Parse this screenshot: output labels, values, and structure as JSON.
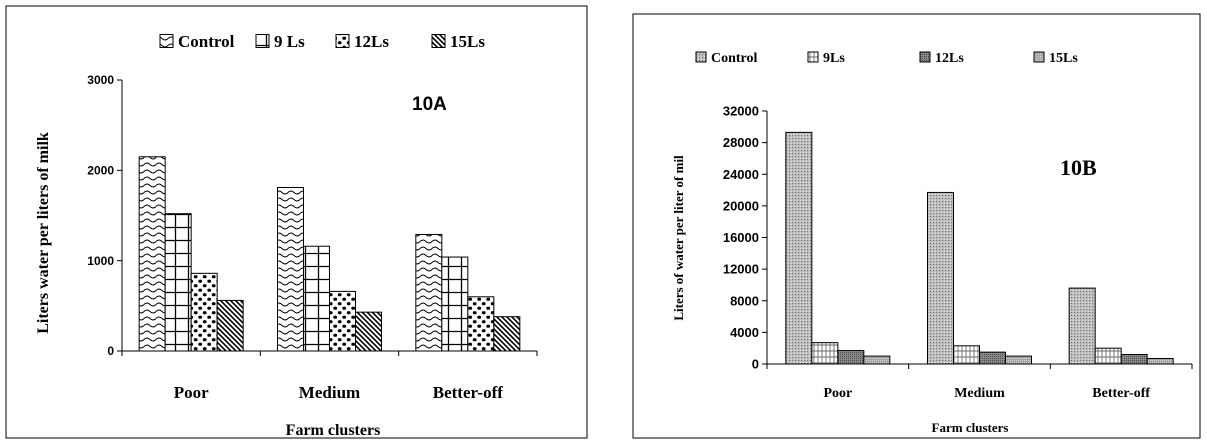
{
  "chart_data": [
    {
      "type": "bar",
      "panel_label": "10A",
      "categories": [
        "Poor",
        "Medium",
        "Better-off"
      ],
      "series": [
        {
          "name": "Control",
          "values": [
            2150,
            1810,
            1290
          ]
        },
        {
          "name": "9 Ls",
          "values": [
            1520,
            1160,
            1040
          ]
        },
        {
          "name": "12Ls",
          "values": [
            860,
            660,
            600
          ]
        },
        {
          "name": "15Ls",
          "values": [
            560,
            430,
            380
          ]
        }
      ],
      "xlabel": "Farm clusters",
      "ylabel": "Liters water per liters of milk",
      "ylim": [
        0,
        3000
      ],
      "yticks": [
        0,
        1000,
        2000,
        3000
      ],
      "legend_position": "top",
      "grid": false
    },
    {
      "type": "bar",
      "panel_label": "10B",
      "categories": [
        "Poor",
        "Medium",
        "Better-off"
      ],
      "series": [
        {
          "name": "Control",
          "values": [
            29300,
            21700,
            9600
          ]
        },
        {
          "name": "9Ls",
          "values": [
            2700,
            2300,
            2000
          ]
        },
        {
          "name": "12Ls",
          "values": [
            1700,
            1500,
            1200
          ]
        },
        {
          "name": "15Ls",
          "values": [
            1000,
            1000,
            700
          ]
        }
      ],
      "xlabel": "Farm clusters",
      "ylabel": "Liters of water per liter of mil",
      "ylim": [
        0,
        32000
      ],
      "yticks": [
        0,
        4000,
        8000,
        12000,
        16000,
        20000,
        24000,
        28000,
        32000
      ],
      "legend_position": "top",
      "grid": false
    }
  ]
}
